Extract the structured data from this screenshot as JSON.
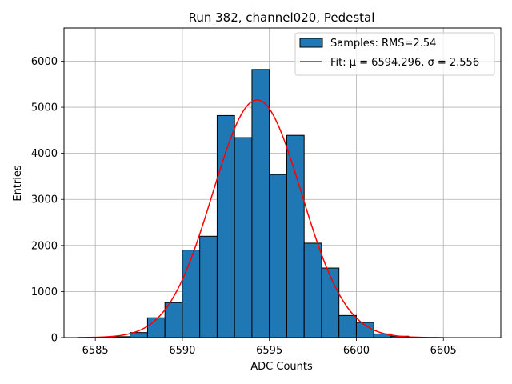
{
  "chart_data": {
    "type": "bar",
    "title": "Run 382, channel020, Pedestal",
    "xlabel": "ADC Counts",
    "ylabel": "Entries",
    "xlim": [
      6583.2,
      6608.3
    ],
    "ylim": [
      0,
      6720
    ],
    "xticks": [
      6585,
      6590,
      6595,
      6600,
      6605
    ],
    "xtick_labels": [
      "6585",
      "6590",
      "6595",
      "6600",
      "6605"
    ],
    "yticks": [
      0,
      1000,
      2000,
      3000,
      4000,
      5000,
      6000
    ],
    "ytick_labels": [
      "0",
      "1000",
      "2000",
      "3000",
      "4000",
      "5000",
      "6000"
    ],
    "grid": true,
    "legend_position": "top-right",
    "bin_width": 1,
    "bins": [
      {
        "x_left": 6586,
        "value": 20
      },
      {
        "x_left": 6587,
        "value": 110
      },
      {
        "x_left": 6588,
        "value": 430
      },
      {
        "x_left": 6589,
        "value": 760
      },
      {
        "x_left": 6590,
        "value": 1900
      },
      {
        "x_left": 6591,
        "value": 2200
      },
      {
        "x_left": 6592,
        "value": 4820
      },
      {
        "x_left": 6593,
        "value": 4340
      },
      {
        "x_left": 6594,
        "value": 5820
      },
      {
        "x_left": 6595,
        "value": 3540
      },
      {
        "x_left": 6596,
        "value": 4390
      },
      {
        "x_left": 6597,
        "value": 2050
      },
      {
        "x_left": 6598,
        "value": 1510
      },
      {
        "x_left": 6599,
        "value": 480
      },
      {
        "x_left": 6600,
        "value": 330
      },
      {
        "x_left": 6601,
        "value": 80
      },
      {
        "x_left": 6602,
        "value": 30
      }
    ],
    "fit": {
      "mu": 6594.296,
      "sigma": 2.556,
      "amplitude": 5160,
      "x_range": [
        6584,
        6605
      ]
    },
    "series": [
      {
        "name": "Samples: RMS=2.54",
        "type": "histogram",
        "color": "#1f77b4",
        "edgecolor": "#000000"
      },
      {
        "name": "Fit: μ = 6594.296, σ = 2.556",
        "type": "line",
        "color": "#ff0000"
      }
    ]
  }
}
